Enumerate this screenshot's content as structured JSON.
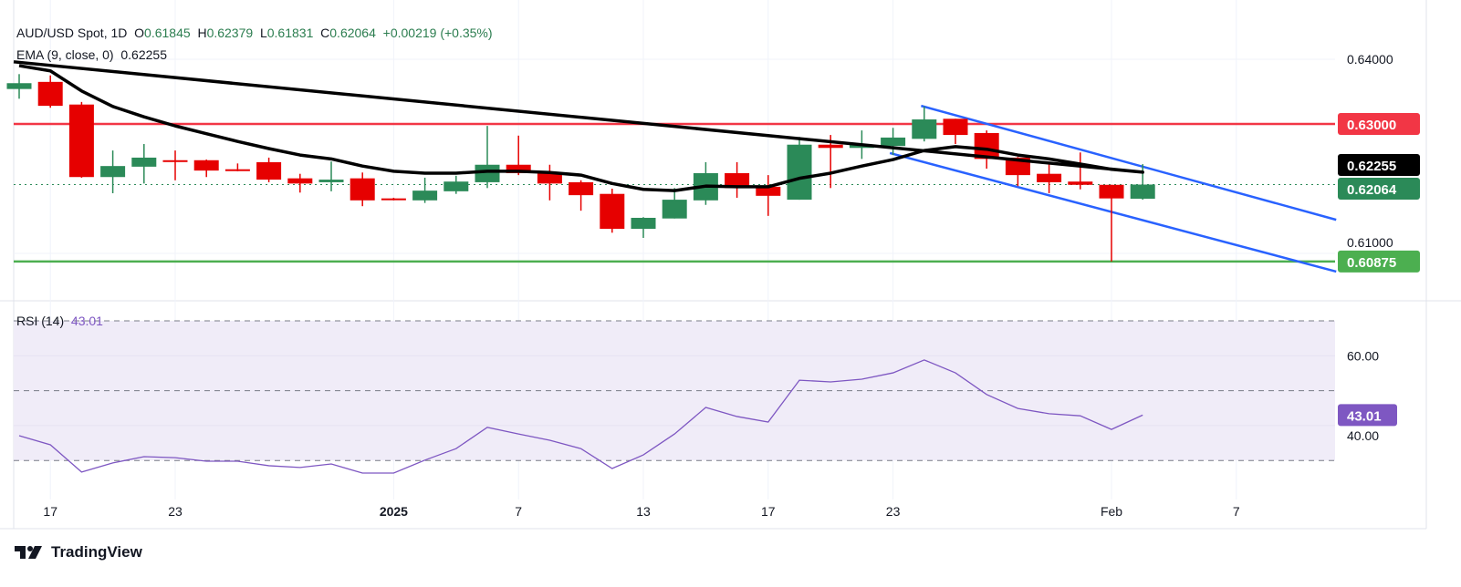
{
  "header": {
    "symbol": "AUD/USD Spot, 1D",
    "o_label": "O",
    "o": "0.61845",
    "h_label": "H",
    "h": "0.62379",
    "l_label": "L",
    "l": "0.61831",
    "c_label": "C",
    "c": "0.62064",
    "change": "+0.00219 (+0.35%)",
    "ema_label": "EMA (9, close, 0)",
    "ema_value": "0.62255"
  },
  "rsi_legend": {
    "label": "RSI (14)",
    "value": "43.01"
  },
  "branding": {
    "logo_text": "TradingView"
  },
  "colors": {
    "up": "#2b8a58",
    "down": "#e60000",
    "ema": "#000000",
    "resistance": "#f23645",
    "support": "#4caf50",
    "channel": "#2962ff",
    "rsi": "#7e57c2",
    "rsi_band": "#f0ecf8"
  },
  "chart_data": [
    {
      "type": "candlestick",
      "title": "AUD/USD Spot, 1D",
      "ylim": [
        0.605,
        0.641
      ],
      "y_ticks": [
        "0.64000",
        "0.61000"
      ],
      "x_ticks": [
        {
          "index": 1,
          "label": "17"
        },
        {
          "index": 5,
          "label": "23"
        },
        {
          "index": 12,
          "label": "2025"
        },
        {
          "index": 16,
          "label": "7"
        },
        {
          "index": 20,
          "label": "13"
        },
        {
          "index": 24,
          "label": "17"
        },
        {
          "index": 28,
          "label": "23"
        },
        {
          "index": 35,
          "label": "Feb"
        },
        {
          "index": 39,
          "label": "7"
        }
      ],
      "ohlc": [
        [
          0.6354,
          0.6377,
          0.6339,
          0.6363
        ],
        [
          0.6365,
          0.6375,
          0.6325,
          0.6328
        ],
        [
          0.633,
          0.6334,
          0.6217,
          0.6218
        ],
        [
          0.6218,
          0.6259,
          0.6193,
          0.6235
        ],
        [
          0.6234,
          0.6269,
          0.6208,
          0.6248
        ],
        [
          0.6244,
          0.6259,
          0.6213,
          0.6242
        ],
        [
          0.6244,
          0.6245,
          0.6218,
          0.6228
        ],
        [
          0.623,
          0.6239,
          0.6227,
          0.6228
        ],
        [
          0.6241,
          0.6248,
          0.621,
          0.6214
        ],
        [
          0.6216,
          0.6223,
          0.6194,
          0.6208
        ],
        [
          0.621,
          0.6242,
          0.6196,
          0.6214
        ],
        [
          0.6216,
          0.6225,
          0.6173,
          0.6182
        ],
        [
          0.6185,
          0.6186,
          0.6182,
          0.6183
        ],
        [
          0.6182,
          0.6217,
          0.6178,
          0.6197
        ],
        [
          0.6196,
          0.622,
          0.6192,
          0.6211
        ],
        [
          0.621,
          0.6297,
          0.6201,
          0.6237
        ],
        [
          0.6237,
          0.6282,
          0.6221,
          0.6224
        ],
        [
          0.6225,
          0.6237,
          0.6182,
          0.6208
        ],
        [
          0.621,
          0.6213,
          0.6166,
          0.619
        ],
        [
          0.6192,
          0.62,
          0.6132,
          0.6138
        ],
        [
          0.6138,
          0.6156,
          0.6124,
          0.6155
        ],
        [
          0.6154,
          0.6201,
          0.6154,
          0.6183
        ],
        [
          0.6182,
          0.6241,
          0.6175,
          0.6224
        ],
        [
          0.6224,
          0.6241,
          0.6186,
          0.6201
        ],
        [
          0.6203,
          0.6221,
          0.6158,
          0.6189
        ],
        [
          0.6183,
          0.628,
          0.6183,
          0.6268
        ],
        [
          0.6268,
          0.6283,
          0.6201,
          0.6263
        ],
        [
          0.6263,
          0.629,
          0.6246,
          0.6268
        ],
        [
          0.6266,
          0.6294,
          0.6252,
          0.6279
        ],
        [
          0.6277,
          0.6327,
          0.6273,
          0.6307
        ],
        [
          0.6308,
          0.6308,
          0.6269,
          0.6283
        ],
        [
          0.6286,
          0.629,
          0.6231,
          0.6246
        ],
        [
          0.6248,
          0.6249,
          0.6204,
          0.6221
        ],
        [
          0.6223,
          0.6238,
          0.6193,
          0.621
        ],
        [
          0.6211,
          0.6256,
          0.6199,
          0.6206
        ],
        [
          0.6206,
          0.6206,
          0.60875,
          0.6185
        ],
        [
          0.61845,
          0.62379,
          0.61831,
          0.62064
        ]
      ],
      "ema9": [
        0.639,
        0.6382,
        0.6351,
        0.6327,
        0.6311,
        0.6297,
        0.6285,
        0.6273,
        0.6262,
        0.6252,
        0.6246,
        0.6235,
        0.6227,
        0.6224,
        0.6224,
        0.6227,
        0.6227,
        0.6225,
        0.6221,
        0.6208,
        0.6199,
        0.6197,
        0.6204,
        0.6203,
        0.6203,
        0.6216,
        0.6224,
        0.6235,
        0.6245,
        0.6259,
        0.6265,
        0.6261,
        0.6252,
        0.6246,
        0.6238,
        0.623,
        0.62255
      ],
      "horizontal_lines": [
        {
          "name": "resistance",
          "price": 0.63,
          "label": "0.63000"
        },
        {
          "name": "support",
          "price": 0.60875,
          "label": "0.60875"
        }
      ],
      "channel": {
        "upper": [
          [
            28.9,
            0.6328
          ],
          [
            42.2,
            0.6152
          ]
        ],
        "lower": [
          [
            27.9,
            0.6255
          ],
          [
            42.2,
            0.6072
          ]
        ]
      },
      "price_labels": {
        "ema": "0.62255",
        "last": "0.62064"
      }
    },
    {
      "type": "line",
      "title": "RSI (14)",
      "ylim": [
        24,
        78
      ],
      "bands": [
        70,
        50,
        30
      ],
      "y_ticks": [
        "60.00",
        "40.00"
      ],
      "values": [
        37.1,
        34.5,
        26.7,
        29.3,
        31.1,
        30.8,
        29.8,
        29.8,
        28.5,
        28.0,
        29.0,
        26.4,
        26.4,
        30.1,
        33.4,
        39.5,
        37.6,
        35.8,
        33.4,
        27.7,
        31.6,
        37.6,
        45.2,
        42.6,
        41.0,
        53.0,
        52.5,
        53.3,
        55.1,
        58.8,
        55.1,
        48.9,
        44.9,
        43.4,
        42.8,
        38.9,
        43.01
      ],
      "last_label": "43.01"
    }
  ]
}
